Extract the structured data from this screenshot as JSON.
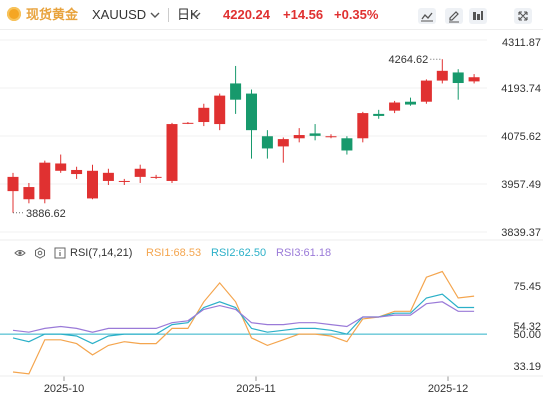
{
  "header": {
    "title": "现货黄金",
    "symbol": "XAUUSD",
    "period": "日K",
    "price": "4220.24",
    "change": "+14.56",
    "change_pct": "+0.35%",
    "up_color": "#e03131",
    "down_color": "#17996c",
    "brand_color": "#e8a33d"
  },
  "toolbar": {
    "icons": [
      "line-chart-icon",
      "edit-pen-icon",
      "indicator-settings-icon",
      "fullscreen-icon"
    ]
  },
  "chart_data": [
    {
      "type": "candlestick",
      "title": "",
      "y_ticks": [
        "4311.87",
        "4193.74",
        "4075.62",
        "3957.49",
        "3839.37"
      ],
      "ylim": [
        3839.37,
        4311.87
      ],
      "x_ticks": [
        "2025-10",
        "2025-11",
        "2025-12"
      ],
      "annotations": {
        "high": "4264.62",
        "low": "3886.62"
      },
      "candles": [
        {
          "o": 3940,
          "c": 3975,
          "h": 3985,
          "l": 3886.62
        },
        {
          "o": 3920,
          "c": 3950,
          "h": 3960,
          "l": 3910
        },
        {
          "o": 3920,
          "c": 4010,
          "h": 4015,
          "l": 3910
        },
        {
          "o": 3990,
          "c": 4008,
          "h": 4030,
          "l": 3985
        },
        {
          "o": 3982,
          "c": 3992,
          "h": 4000,
          "l": 3970
        },
        {
          "o": 3922,
          "c": 3990,
          "h": 4005,
          "l": 3920
        },
        {
          "o": 3965,
          "c": 3985,
          "h": 3995,
          "l": 3955
        },
        {
          "o": 3965,
          "c": 3965,
          "h": 3970,
          "l": 3955
        },
        {
          "o": 3975,
          "c": 3995,
          "h": 4005,
          "l": 3960
        },
        {
          "o": 3975,
          "c": 3975,
          "h": 3980,
          "l": 3970
        },
        {
          "o": 3965,
          "c": 4105,
          "h": 4108,
          "l": 3960
        },
        {
          "o": 4108,
          "c": 4108,
          "h": 4110,
          "l": 4105
        },
        {
          "o": 4110,
          "c": 4145,
          "h": 4155,
          "l": 4100
        },
        {
          "o": 4105,
          "c": 4175,
          "h": 4180,
          "l": 4090
        },
        {
          "o": 4205,
          "c": 4165,
          "h": 4248,
          "l": 4130
        },
        {
          "o": 4180,
          "c": 4090,
          "h": 4190,
          "l": 4020
        },
        {
          "o": 4075,
          "c": 4045,
          "h": 4090,
          "l": 4020
        },
        {
          "o": 4050,
          "c": 4068,
          "h": 4072,
          "l": 4010
        },
        {
          "o": 4070,
          "c": 4078,
          "h": 4095,
          "l": 4060
        },
        {
          "o": 4082,
          "c": 4076,
          "h": 4105,
          "l": 4065
        },
        {
          "o": 4075,
          "c": 4075,
          "h": 4080,
          "l": 4070
        },
        {
          "o": 4070,
          "c": 4040,
          "h": 4075,
          "l": 4030
        },
        {
          "o": 4070,
          "c": 4132,
          "h": 4135,
          "l": 4060
        },
        {
          "o": 4130,
          "c": 4125,
          "h": 4140,
          "l": 4118
        },
        {
          "o": 4138,
          "c": 4158,
          "h": 4162,
          "l": 4132
        },
        {
          "o": 4160,
          "c": 4153,
          "h": 4170,
          "l": 4150
        },
        {
          "o": 4160,
          "c": 4212,
          "h": 4215,
          "l": 4155
        },
        {
          "o": 4212,
          "c": 4236,
          "h": 4264.62,
          "l": 4205
        },
        {
          "o": 4232,
          "c": 4206,
          "h": 4240,
          "l": 4165
        },
        {
          "o": 4210,
          "c": 4220.24,
          "h": 4228,
          "l": 4205
        }
      ]
    },
    {
      "type": "line",
      "title": "RSI(7,14,21)",
      "y_ticks": [
        "75.45",
        "54.32",
        "50.00",
        "33.19"
      ],
      "ylim": [
        30,
        88
      ],
      "reference_line": 50,
      "series": [
        {
          "name": "RSI1",
          "label_value": "68.53",
          "color": "#f4a54e",
          "values": [
            30,
            29,
            47,
            47,
            45,
            39,
            44,
            46,
            45,
            45,
            53,
            53,
            67,
            77,
            67,
            48,
            44,
            47,
            50,
            50,
            49,
            46,
            58,
            59,
            62,
            62,
            80,
            83,
            69,
            70
          ]
        },
        {
          "name": "RSI2",
          "label_value": "62.50",
          "color": "#2bb0c8",
          "values": [
            48,
            46,
            50,
            50,
            49,
            45,
            49,
            50,
            50,
            50,
            55,
            56,
            64,
            67,
            64,
            53,
            51,
            52,
            53,
            53,
            52,
            50,
            59,
            59,
            61,
            61,
            69,
            71,
            64,
            64
          ]
        },
        {
          "name": "RSI3",
          "label_value": "61.18",
          "color": "#9a7ad8",
          "values": [
            52,
            51,
            53,
            54,
            53,
            51,
            53,
            53,
            53,
            53,
            56,
            57,
            63,
            65,
            63,
            56,
            55,
            55,
            56,
            56,
            55,
            54,
            59,
            59,
            60,
            60,
            66,
            67,
            62,
            62
          ]
        }
      ]
    }
  ]
}
